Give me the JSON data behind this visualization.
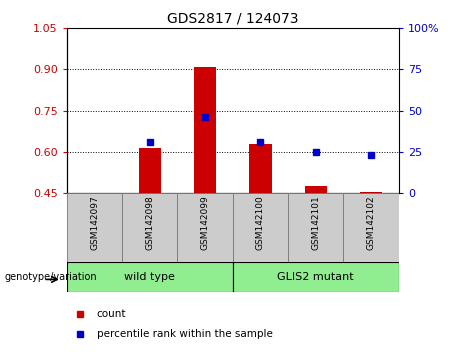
{
  "title": "GDS2817 / 124073",
  "samples": [
    "GSM142097",
    "GSM142098",
    "GSM142099",
    "GSM142100",
    "GSM142101",
    "GSM142102"
  ],
  "red_bar_tops": [
    0.45,
    0.615,
    0.91,
    0.63,
    0.475,
    0.455
  ],
  "red_bar_base": 0.45,
  "blue_marker_left_vals": [
    null,
    0.635,
    0.728,
    0.635,
    0.601,
    0.587
  ],
  "ylim_left": [
    0.45,
    1.05
  ],
  "ylim_right": [
    0,
    100
  ],
  "yticks_left": [
    0.45,
    0.6,
    0.75,
    0.9,
    1.05
  ],
  "yticks_right": [
    0,
    25,
    50,
    75,
    100
  ],
  "group_label": "genotype/variation",
  "wt_label": "wild type",
  "mut_label": "GLIS2 mutant",
  "legend_count_label": "count",
  "legend_pct_label": "percentile rank within the sample",
  "bar_color": "#CC0000",
  "marker_color": "#0000CC",
  "tick_color_left": "#CC0000",
  "tick_color_right": "#0000CC",
  "grid_color": "#000000",
  "sample_bg_color": "#CCCCCC",
  "group_bg_color": "#90EE90",
  "group_border_color": "#000000",
  "fig_bg": "#FFFFFF"
}
